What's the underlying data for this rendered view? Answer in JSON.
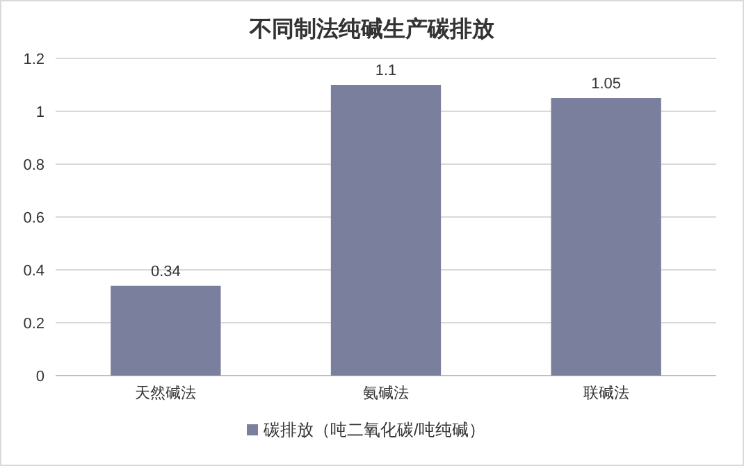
{
  "chart_data": {
    "type": "bar",
    "title": "不同制法纯碱生产碳排放",
    "categories": [
      "天然碱法",
      "氨碱法",
      "联碱法"
    ],
    "series": [
      {
        "name": "碳排放（吨二氧化碳/吨纯碱）",
        "color": "#7b7f9e",
        "values": [
          0.34,
          1.1,
          1.05
        ]
      }
    ],
    "ylim": [
      0,
      1.2
    ],
    "yticks": [
      0,
      0.2,
      0.4,
      0.6,
      0.8,
      1,
      1.2
    ],
    "grid": "y",
    "legend": "bottom",
    "data_labels": true
  }
}
